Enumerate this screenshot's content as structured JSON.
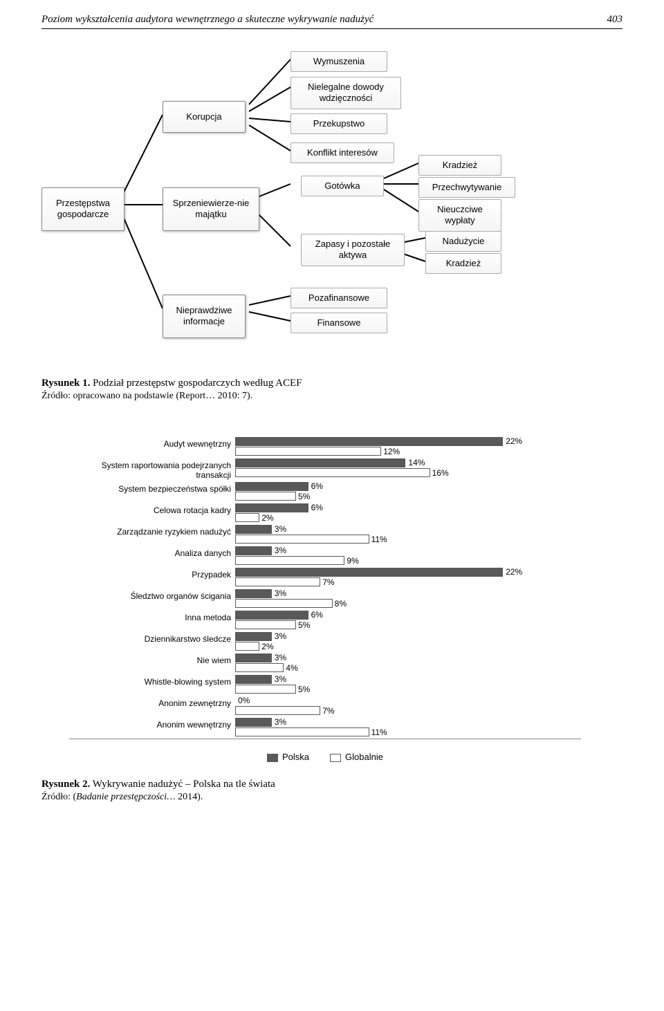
{
  "header": {
    "title": "Poziom wykształcenia audytora wewnętrznego a skuteczne wykrywanie nadużyć",
    "page": "403"
  },
  "flowchart": {
    "korupcja": "Korupcja",
    "wymuszenia": "Wymuszenia",
    "nielegalne": "Nielegalne dowody wdzięczności",
    "przekupstwo": "Przekupstwo",
    "konflikt": "Konflikt interesów",
    "przestepstwa": "Przestępstwa gospodarcze",
    "sprzeniewierzenie": "Sprzeniewierze-nie majątku",
    "gotowka": "Gotówka",
    "zapasy": "Zapasy i pozostałe aktywa",
    "kradziez1": "Kradzież",
    "przechwytywanie": "Przechwytywanie",
    "nieuczciwe": "Nieuczciwe wypłaty",
    "naduzycie": "Nadużycie",
    "kradziez2": "Kradzież",
    "nieprawdziwe": "Nieprawdziwe informacje",
    "pozafinansowe": "Pozafinansowe",
    "finansowe": "Finansowe"
  },
  "figure1": {
    "caption_bold": "Rysunek 1.",
    "caption_text": " Podział przestępstw gospodarczych według ACEF",
    "source": "Źródło: opracowano na podstawie (Report… 2010: 7)."
  },
  "barchart": {
    "max": 25,
    "rows": [
      {
        "label": "Audyt wewnętrzny",
        "polska": 22,
        "global": 12
      },
      {
        "label": "System raportowania podejrzanych transakcji",
        "polska": 14,
        "global": 16
      },
      {
        "label": "System bezpieczeństwa spółki",
        "polska": 6,
        "global": 5
      },
      {
        "label": "Celowa rotacja kadry",
        "polska": 6,
        "global": 2
      },
      {
        "label": "Zarządzanie ryzykiem nadużyć",
        "polska": 3,
        "global": 11
      },
      {
        "label": "Analiza danych",
        "polska": 3,
        "global": 9
      },
      {
        "label": "Przypadek",
        "polska": 22,
        "global": 7
      },
      {
        "label": "Śledztwo organów ścigania",
        "polska": 3,
        "global": 8
      },
      {
        "label": "Inna metoda",
        "polska": 6,
        "global": 5
      },
      {
        "label": "Dziennikarstwo śledcze",
        "polska": 3,
        "global": 2
      },
      {
        "label": "Nie wiem",
        "polska": 3,
        "global": 4
      },
      {
        "label": "Whistle-blowing system",
        "polska": 3,
        "global": 5
      },
      {
        "label": "Anonim zewnętrzny",
        "polska": 0,
        "global": 7
      },
      {
        "label": "Anonim wewnętrzny",
        "polska": 3,
        "global": 11
      }
    ],
    "legend": {
      "polska": "Polska",
      "global": "Globalnie"
    },
    "bar_colors": {
      "polska": "#595959",
      "global_fill": "#ffffff",
      "global_border": "#595959"
    }
  },
  "figure2": {
    "caption_bold": "Rysunek 2.",
    "caption_text": " Wykrywanie nadużyć – Polska na tle świata",
    "source_prefix": "Źródło: (",
    "source_italic": "Badanie przestępczości…",
    "source_suffix": " 2014)."
  }
}
